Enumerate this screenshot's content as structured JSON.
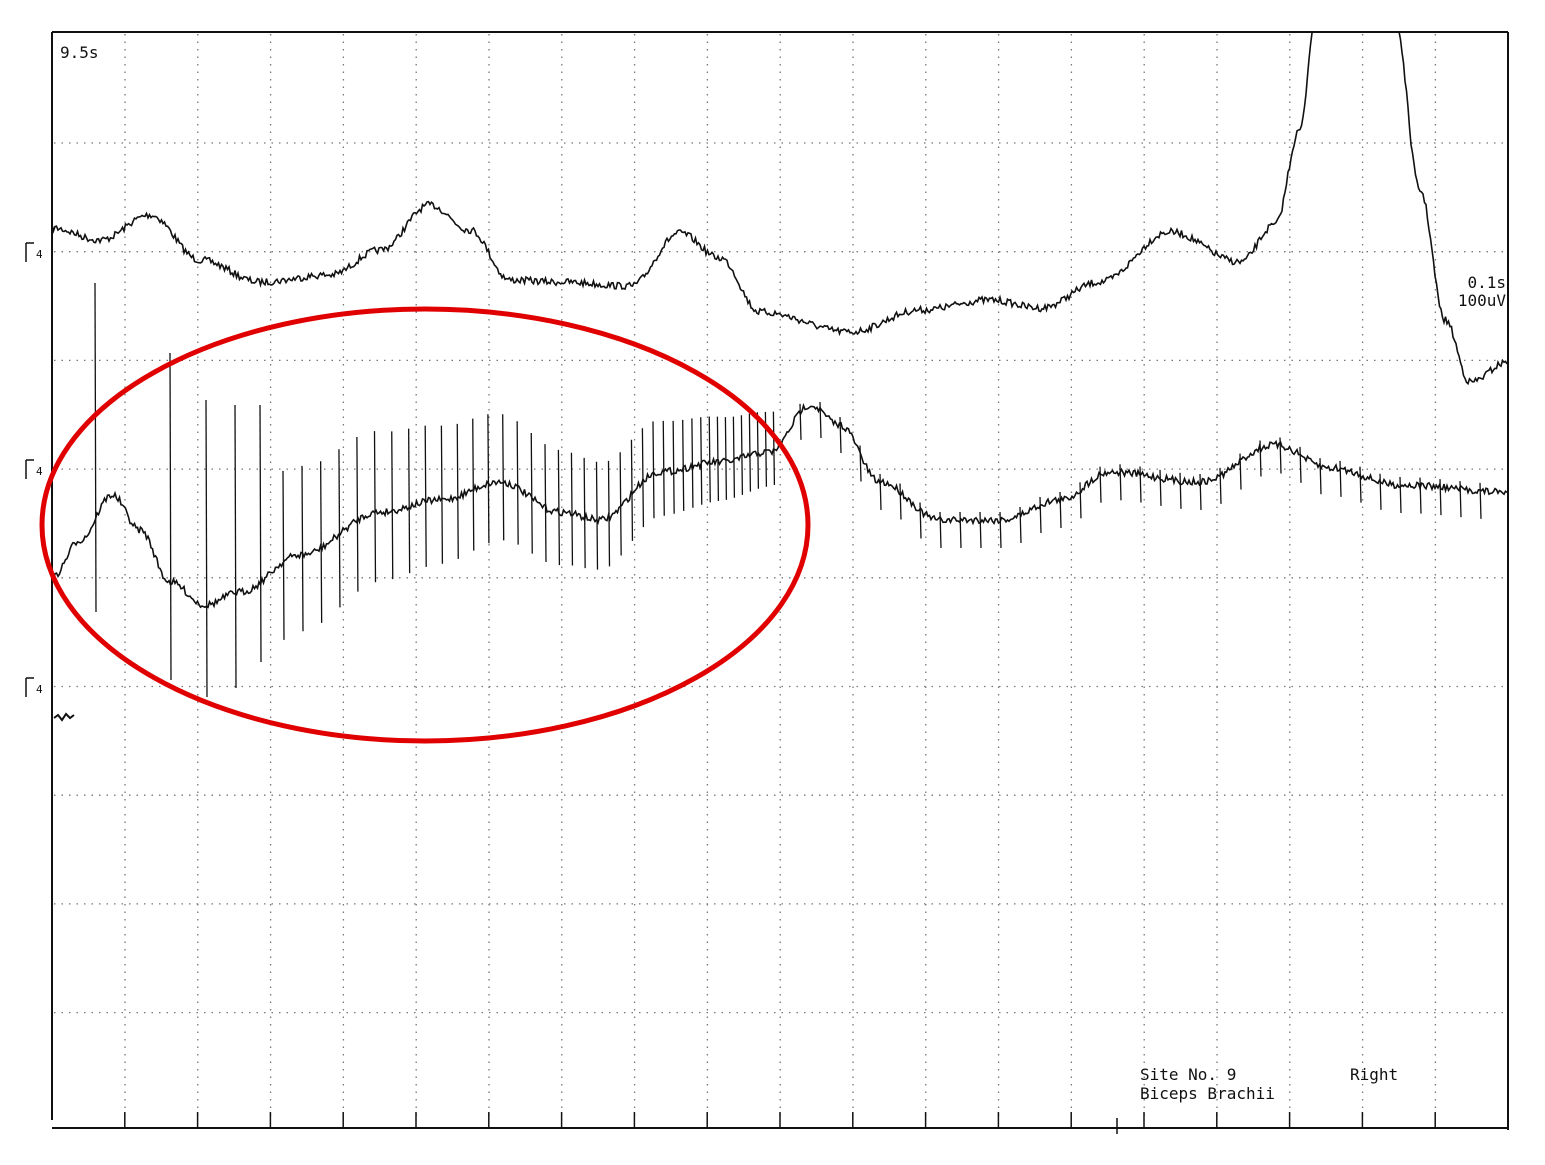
{
  "header": {
    "sweep": "9.5s"
  },
  "channels": [
    {
      "label": "4"
    },
    {
      "label": "4"
    },
    {
      "label": "4"
    }
  ],
  "scale": {
    "time": "0.1s",
    "gain": "100uV"
  },
  "footer": {
    "site": "Site No. 9",
    "side": "Right",
    "muscle": "Biceps Brachii"
  }
}
